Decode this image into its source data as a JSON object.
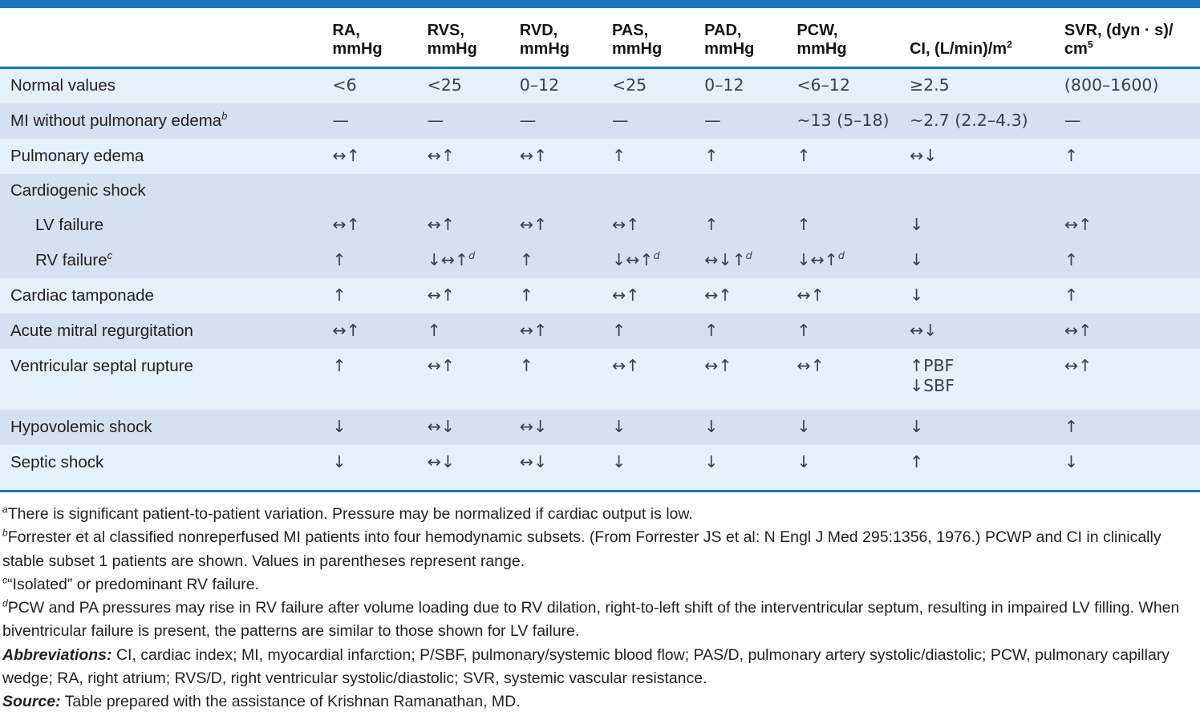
{
  "accent_color": "#1c75bc",
  "row_color_light": "#e4f1fa",
  "row_color_dark": "#d5e0f0",
  "table": {
    "columns": [
      "",
      "RA,\nmmHg",
      "RVS,\nmmHg",
      "RVD,\nmmHg",
      "PAS,\nmmHg",
      "PAD,\nmmHg",
      "PCW,\nmmHg",
      "CI, (L/min)/m{2}",
      "SVR, (dyn · s)/\ncm{5}"
    ],
    "rows": [
      {
        "label": "Normal values",
        "band": "light",
        "indent": false,
        "group_header": false,
        "cells": [
          "<6",
          "<25",
          "0–12",
          "<25",
          "0–12",
          "<6–12",
          "≥2.5",
          "(800–1600)"
        ]
      },
      {
        "label": "MI without pulmonary edema{b}",
        "band": "dark",
        "indent": false,
        "group_header": false,
        "cells": [
          "—",
          "—",
          "—",
          "—",
          "—",
          "~13 (5–18)",
          "~2.7 (2.2–4.3)",
          "—"
        ]
      },
      {
        "label": "Pulmonary edema",
        "band": "light",
        "indent": false,
        "group_header": false,
        "cells": [
          "↔↑",
          "↔↑",
          "↔↑",
          "↑",
          "↑",
          "↑",
          "↔↓",
          "↑"
        ]
      },
      {
        "label": "Cardiogenic shock",
        "band": "dark",
        "indent": false,
        "group_header": true,
        "cells": [
          "",
          "",
          "",
          "",
          "",
          "",
          "",
          ""
        ]
      },
      {
        "label": "LV failure",
        "band": "dark",
        "indent": true,
        "group_header": false,
        "cells": [
          "↔↑",
          "↔↑",
          "↔↑",
          "↔↑",
          "↑",
          "↑",
          "↓",
          "↔↑"
        ]
      },
      {
        "label": "RV failure{c}",
        "band": "dark",
        "indent": true,
        "group_header": false,
        "cells": [
          "↑",
          "↓↔↑{d}",
          "↑",
          "↓↔↑{d}",
          "↔↓↑{d}",
          "↓↔↑{d}",
          "↓",
          "↑"
        ]
      },
      {
        "label": "Cardiac tamponade",
        "band": "light",
        "indent": false,
        "group_header": false,
        "cells": [
          "↑",
          "↔↑",
          "↑",
          "↔↑",
          "↔↑",
          "↔↑",
          "↓",
          "↑"
        ]
      },
      {
        "label": "Acute mitral regurgitation",
        "band": "dark",
        "indent": false,
        "group_header": false,
        "cells": [
          "↔↑",
          "↑",
          "↔↑",
          "↑",
          "↑",
          "↑",
          "↔↓",
          "↔↑"
        ]
      },
      {
        "label": "Ventricular septal rupture",
        "band": "light",
        "indent": false,
        "group_header": false,
        "cells": [
          "↑",
          "↔↑",
          "↑",
          "↔↑",
          "↔↑",
          "↔↑",
          "↑PBF\n↓SBF",
          "↔↑"
        ]
      },
      {
        "label": "Hypovolemic shock",
        "band": "dark",
        "indent": false,
        "group_header": false,
        "cells": [
          "↓",
          "↔↓",
          "↔↓",
          "↓",
          "↓",
          "↓",
          "↓",
          "↑"
        ]
      },
      {
        "label": "Septic shock",
        "band": "light",
        "indent": false,
        "group_header": false,
        "cells": [
          "↓",
          "↔↓",
          "↔↓",
          "↓",
          "↓",
          "↓",
          "↑",
          "↓"
        ]
      }
    ]
  },
  "footnotes": [
    {
      "prefix": "",
      "text": "{a}There is significant patient-to-patient variation. Pressure may be normalized if cardiac output is low."
    },
    {
      "prefix": "",
      "text": "{b}Forrester et al classified nonreperfused MI patients into four hemodynamic subsets. (From Forrester JS et al: N Engl J Med 295:1356, 1976.) PCWP and CI in clinically stable subset 1 patients are shown. Values in parentheses represent range."
    },
    {
      "prefix": "",
      "text": "{c}“Isolated” or predominant RV failure."
    },
    {
      "prefix": "",
      "text": "{d}PCW and PA pressures may rise in RV failure after volume loading due to RV dilation, right-to-left shift of the interventricular septum, resulting in impaired LV filling. When biventricular failure is present, the patterns are similar to those shown for LV failure."
    },
    {
      "prefix": "Abbreviations:",
      "text": " CI, cardiac index; MI, myocardial infarction; P/SBF, pulmonary/systemic blood flow; PAS/D, pulmonary artery systolic/diastolic; PCW, pulmonary capillary wedge; RA, right atrium; RVS/D, right ventricular systolic/diastolic; SVR, systemic vascular resistance."
    },
    {
      "prefix": "Source:",
      "text": " Table prepared with the assistance of Krishnan Ramanathan, MD."
    }
  ]
}
